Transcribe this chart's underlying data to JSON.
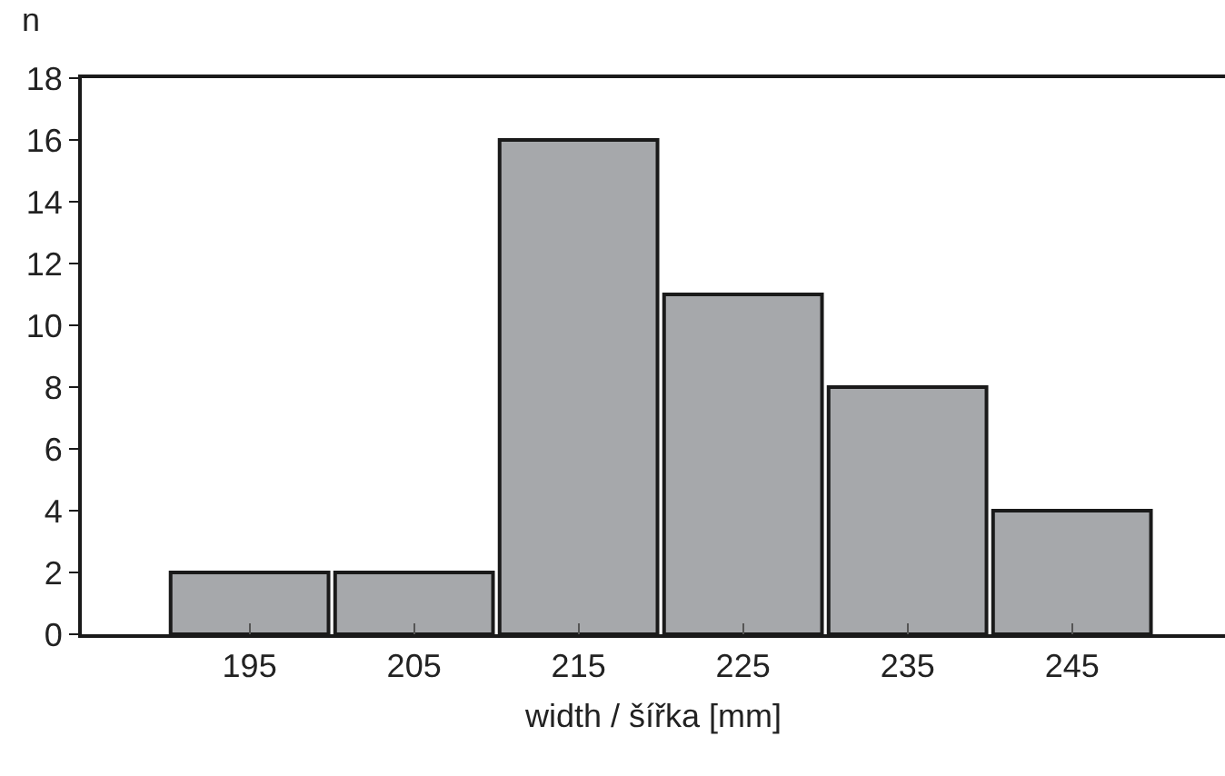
{
  "chart_data": {
    "type": "bar",
    "categories": [
      "195",
      "205",
      "215",
      "225",
      "235",
      "245"
    ],
    "values": [
      2,
      2,
      16,
      11,
      8,
      4
    ],
    "color": "#a6a8ab",
    "xlabel": "width / šířka [mm]",
    "ylabel": "n",
    "ylim": [
      0,
      18
    ],
    "yticks": [
      0,
      2,
      4,
      6,
      8,
      10,
      12,
      14,
      16,
      18
    ]
  }
}
